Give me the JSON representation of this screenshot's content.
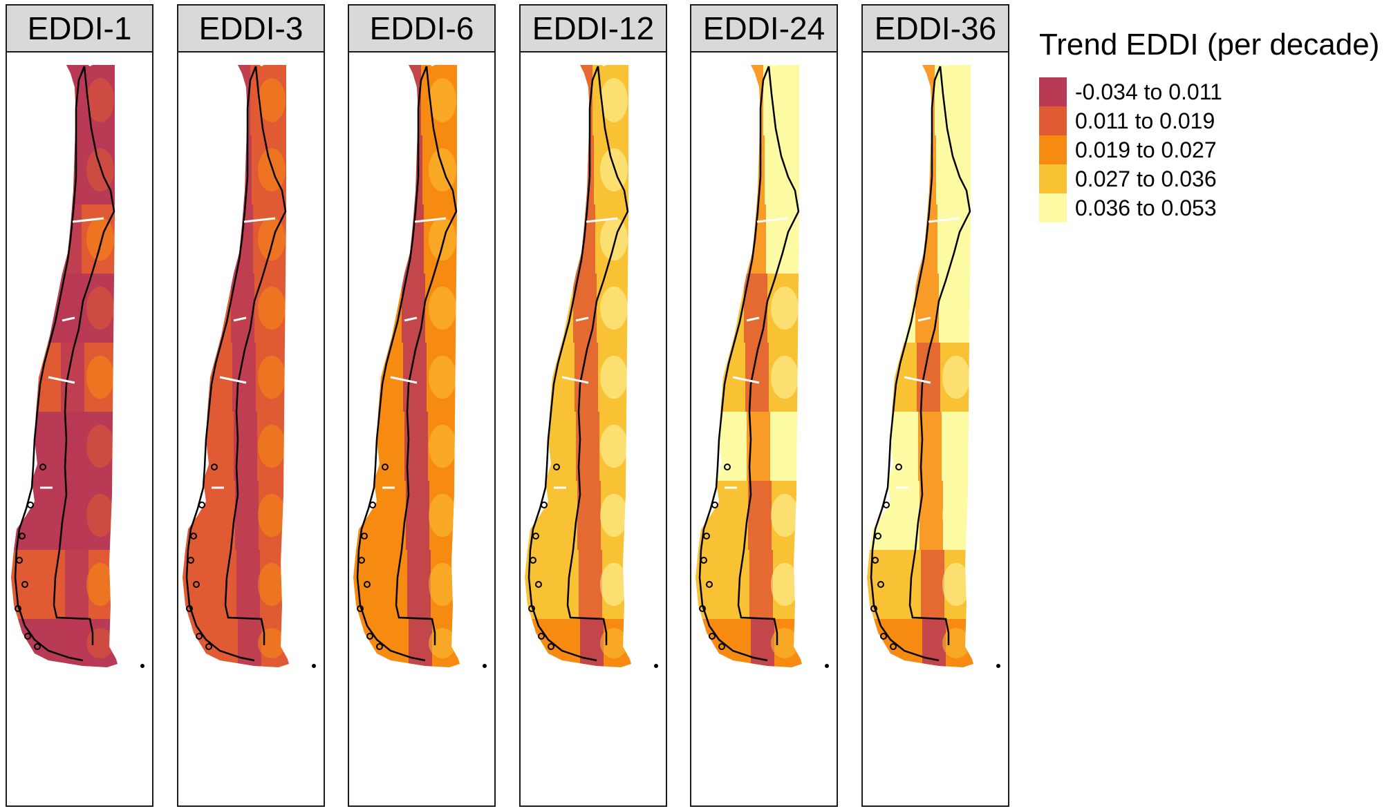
{
  "panels": [
    {
      "label": "EDDI-1",
      "dominant": [
        0,
        0,
        1,
        0,
        1,
        0,
        0,
        1,
        0
      ]
    },
    {
      "label": "EDDI-3",
      "dominant": [
        1,
        1,
        1,
        1,
        1,
        1,
        1,
        1,
        1
      ]
    },
    {
      "label": "EDDI-6",
      "dominant": [
        2,
        2,
        2,
        2,
        2,
        2,
        2,
        2,
        2
      ]
    },
    {
      "label": "EDDI-12",
      "dominant": [
        3,
        3,
        3,
        3,
        3,
        3,
        3,
        3,
        2
      ]
    },
    {
      "label": "EDDI-24",
      "dominant": [
        4,
        4,
        4,
        3,
        3,
        4,
        3,
        3,
        2
      ]
    },
    {
      "label": "EDDI-36",
      "dominant": [
        4,
        4,
        4,
        4,
        3,
        4,
        4,
        3,
        2
      ]
    }
  ],
  "legend": {
    "title": "Trend EDDI (per decade)",
    "classes": [
      {
        "label": "-0.034 to 0.011",
        "color": "#b83a55"
      },
      {
        "label": "0.011 to 0.019",
        "color": "#e05a33"
      },
      {
        "label": "0.019 to 0.027",
        "color": "#f78b12"
      },
      {
        "label": "0.027 to 0.036",
        "color": "#f9c134"
      },
      {
        "label": "0.036 to 0.053",
        "color": "#fdfaa4"
      }
    ]
  }
}
